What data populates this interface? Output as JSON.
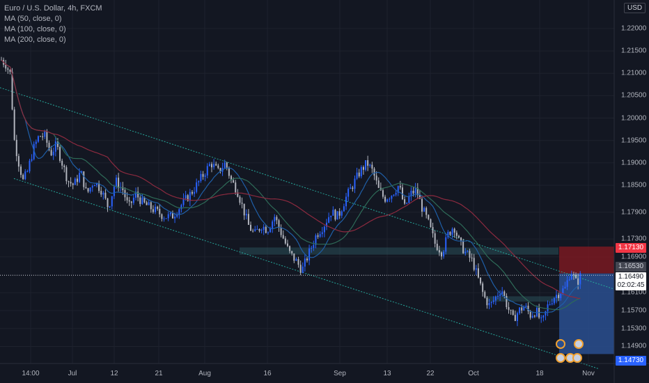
{
  "legend": {
    "title": "Euro / U.S. Dollar, 4h, FXCM",
    "ma50": "MA (50, close, 0)",
    "ma100": "MA (100, close, 0)",
    "ma200": "MA (200, close, 0)"
  },
  "currency": "USD",
  "colors": {
    "background": "#131722",
    "up": "#2962ff",
    "down": "#b2b5be",
    "ma50": "#1f5fa8",
    "ma100": "#2e6b58",
    "ma200": "#8c2a3f",
    "channel": "#26a69a",
    "stop_zone": "#801922",
    "target_zone": "#2a4f8f"
  },
  "y_axis": [
    "1.22000",
    "1.21500",
    "1.21000",
    "1.20500",
    "1.20000",
    "1.19500",
    "1.19000",
    "1.18500",
    "1.17900",
    "1.17300",
    "1.16900",
    "1.16100",
    "1.15700",
    "1.15300",
    "1.14900"
  ],
  "x_axis": [
    "14:00",
    "Jul",
    "12",
    "21",
    "Aug",
    "16",
    "Sep",
    "13",
    "22",
    "Oct",
    "18",
    "Nov"
  ],
  "price_tags": {
    "stop": "1.17130",
    "entry": "1.16530",
    "current": "1.16490",
    "countdown": "02:02:45",
    "target": "1.14730"
  },
  "icons": [
    "calendar-event-icon",
    "us-flag-icon",
    "eu-flag-icon"
  ],
  "chart_data": {
    "type": "candlestick",
    "symbol": "Euro / U.S. Dollar",
    "interval": "4h",
    "ylim": [
      1.1455,
      1.2245
    ],
    "close_path": [
      [
        0,
        1.213
      ],
      [
        6,
        1.212
      ],
      [
        12,
        1.21
      ],
      [
        18,
        1.195
      ],
      [
        24,
        1.19
      ],
      [
        30,
        1.186
      ],
      [
        36,
        1.188
      ],
      [
        44,
        1.193
      ],
      [
        52,
        1.196
      ],
      [
        60,
        1.196
      ],
      [
        68,
        1.192
      ],
      [
        76,
        1.194
      ],
      [
        84,
        1.19
      ],
      [
        92,
        1.186
      ],
      [
        100,
        1.185
      ],
      [
        110,
        1.188
      ],
      [
        118,
        1.183
      ],
      [
        128,
        1.186
      ],
      [
        138,
        1.184
      ],
      [
        148,
        1.18
      ],
      [
        158,
        1.186
      ],
      [
        168,
        1.184
      ],
      [
        176,
        1.18
      ],
      [
        186,
        1.183
      ],
      [
        196,
        1.181
      ],
      [
        206,
        1.18
      ],
      [
        216,
        1.179
      ],
      [
        226,
        1.178
      ],
      [
        236,
        1.178
      ],
      [
        246,
        1.18
      ],
      [
        256,
        1.182
      ],
      [
        266,
        1.184
      ],
      [
        274,
        1.186
      ],
      [
        282,
        1.188
      ],
      [
        290,
        1.19
      ],
      [
        300,
        1.188
      ],
      [
        310,
        1.19
      ],
      [
        318,
        1.186
      ],
      [
        326,
        1.184
      ],
      [
        334,
        1.18
      ],
      [
        342,
        1.176
      ],
      [
        350,
        1.174
      ],
      [
        360,
        1.176
      ],
      [
        368,
        1.175
      ],
      [
        378,
        1.178
      ],
      [
        388,
        1.174
      ],
      [
        398,
        1.17
      ],
      [
        408,
        1.168
      ],
      [
        416,
        1.166
      ],
      [
        426,
        1.17
      ],
      [
        436,
        1.174
      ],
      [
        446,
        1.176
      ],
      [
        456,
        1.179
      ],
      [
        466,
        1.178
      ],
      [
        476,
        1.182
      ],
      [
        486,
        1.185
      ],
      [
        496,
        1.188
      ],
      [
        506,
        1.19
      ],
      [
        514,
        1.188
      ],
      [
        522,
        1.184
      ],
      [
        530,
        1.182
      ],
      [
        540,
        1.183
      ],
      [
        550,
        1.185
      ],
      [
        558,
        1.18
      ],
      [
        566,
        1.183
      ],
      [
        574,
        1.184
      ],
      [
        582,
        1.18
      ],
      [
        590,
        1.177
      ],
      [
        600,
        1.172
      ],
      [
        610,
        1.17
      ],
      [
        618,
        1.174
      ],
      [
        626,
        1.176
      ],
      [
        634,
        1.172
      ],
      [
        642,
        1.17
      ],
      [
        652,
        1.168
      ],
      [
        660,
        1.164
      ],
      [
        668,
        1.16
      ],
      [
        676,
        1.158
      ],
      [
        684,
        1.16
      ],
      [
        692,
        1.162
      ],
      [
        700,
        1.158
      ],
      [
        708,
        1.155
      ],
      [
        716,
        1.157
      ],
      [
        724,
        1.158
      ],
      [
        732,
        1.156
      ],
      [
        740,
        1.157
      ],
      [
        748,
        1.154
      ],
      [
        756,
        1.158
      ],
      [
        764,
        1.16
      ],
      [
        772,
        1.161
      ],
      [
        780,
        1.162
      ],
      [
        788,
        1.166
      ],
      [
        796,
        1.163
      ],
      [
        802,
        1.165
      ]
    ],
    "last_price": 1.1649,
    "positions": {
      "stop": 1.1713,
      "entry": 1.1653,
      "target": 1.1473
    }
  }
}
